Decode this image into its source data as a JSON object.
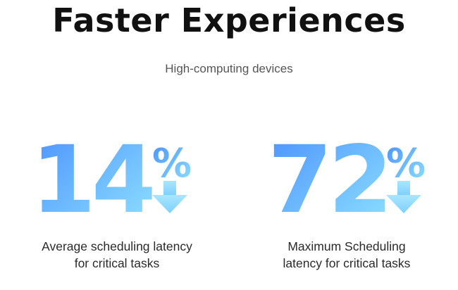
{
  "header": {
    "title": "Faster Experiences",
    "subtitle": "High-computing devices"
  },
  "colors": {
    "gradient_start": "#4a90ff",
    "gradient_end": "#8fe3ff",
    "arrow_start": "#7fc8ff",
    "arrow_end": "#bff0ff",
    "title": "#111111",
    "subtitle": "#555555",
    "caption": "#2a2a2a"
  },
  "stats": [
    {
      "value": "14",
      "unit": "%",
      "direction_icon": "down-arrow-icon",
      "caption_line1": "Average scheduling latency",
      "caption_line2": "for critical tasks"
    },
    {
      "value": "72",
      "unit": "%",
      "direction_icon": "down-arrow-icon",
      "caption_line1": "Maximum Scheduling",
      "caption_line2": "latency for critical tasks"
    }
  ]
}
